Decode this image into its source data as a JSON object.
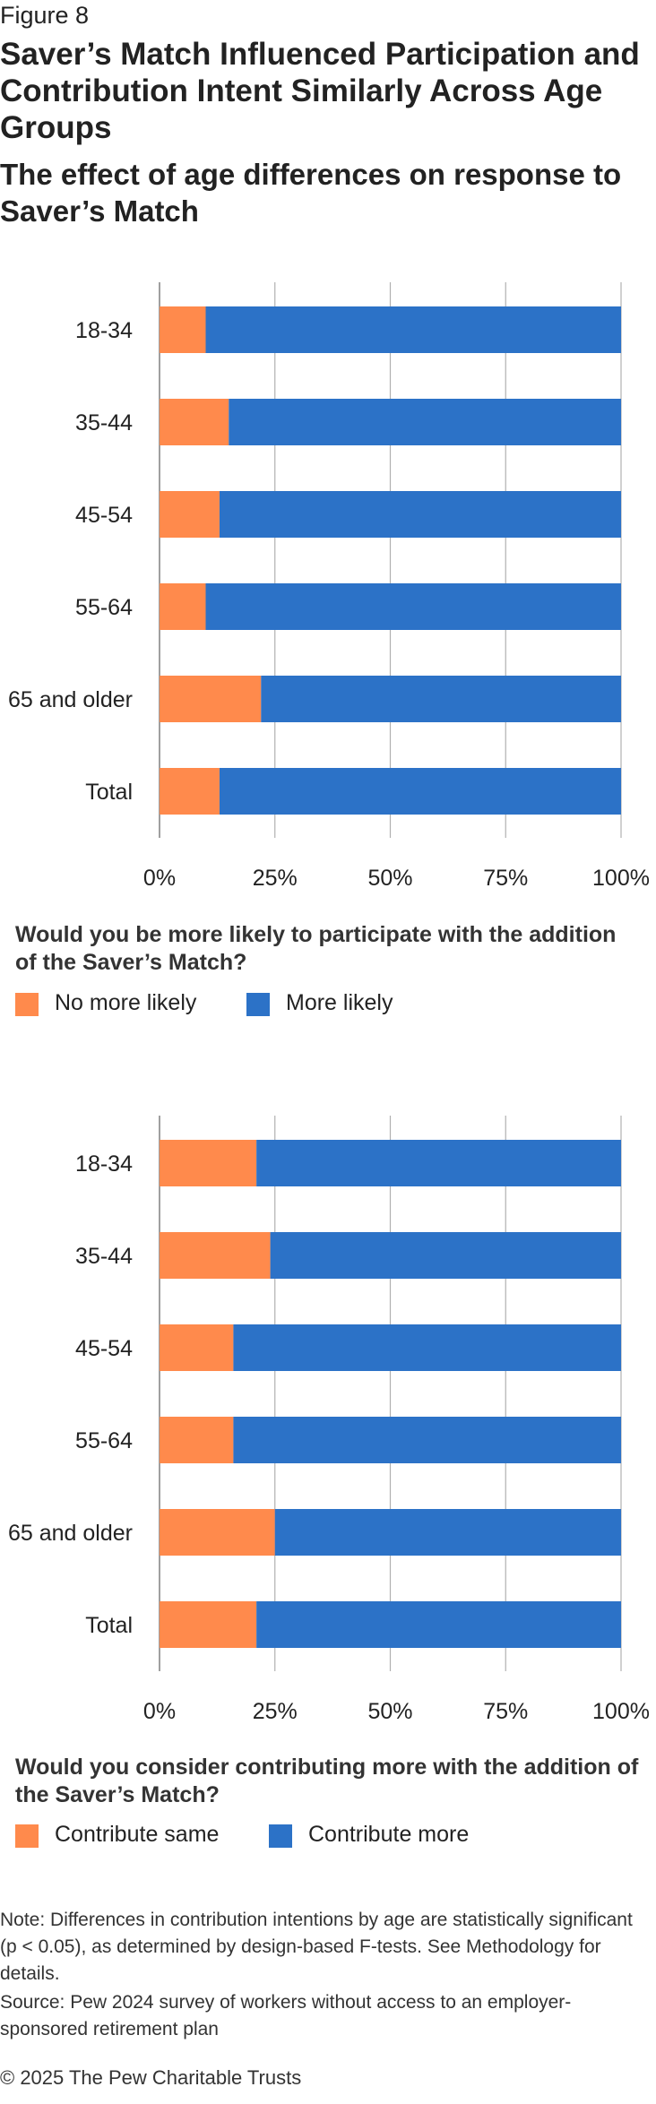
{
  "header": {
    "figure_label": "Figure 8",
    "title": "Saver’s Match Influenced Participation and Contribution Intent Similarly Across Age Groups",
    "subtitle": "The effect of age differences on response to Saver’s Match"
  },
  "colors": {
    "orange": "#ff8a4c",
    "blue": "#2c72c7",
    "gridline": "#b0b0b0",
    "axis": "#888888"
  },
  "chart_data": [
    {
      "type": "bar",
      "orientation": "horizontal",
      "stacked": true,
      "question": "Would you be more likely to participate with the addition of the Saver’s Match?",
      "categories": [
        "18-34",
        "35-44",
        "45-54",
        "55-64",
        "65 and older",
        "Total"
      ],
      "series": [
        {
          "name": "No more likely",
          "color": "#ff8a4c",
          "values": [
            10,
            15,
            13,
            10,
            22,
            13
          ]
        },
        {
          "name": "More likely",
          "color": "#2c72c7",
          "values": [
            90,
            85,
            87,
            90,
            78,
            87
          ]
        }
      ],
      "xlim": [
        0,
        100
      ],
      "x_ticks": [
        0,
        25,
        50,
        75,
        100
      ],
      "x_tick_labels": [
        "0%",
        "25%",
        "50%",
        "75%",
        "100%"
      ],
      "grid": true,
      "legend_position": "bottom-left"
    },
    {
      "type": "bar",
      "orientation": "horizontal",
      "stacked": true,
      "question": "Would you consider contributing more with the addition of the Saver’s Match?",
      "categories": [
        "18-34",
        "35-44",
        "45-54",
        "55-64",
        "65 and older",
        "Total"
      ],
      "series": [
        {
          "name": "Contribute same",
          "color": "#ff8a4c",
          "values": [
            21,
            24,
            16,
            16,
            25,
            21
          ]
        },
        {
          "name": "Contribute more",
          "color": "#2c72c7",
          "values": [
            79,
            76,
            84,
            84,
            75,
            79
          ]
        }
      ],
      "xlim": [
        0,
        100
      ],
      "x_ticks": [
        0,
        25,
        50,
        75,
        100
      ],
      "x_tick_labels": [
        "0%",
        "25%",
        "50%",
        "75%",
        "100%"
      ],
      "grid": true,
      "legend_position": "bottom-left"
    }
  ],
  "footer": {
    "note": "Note: Differences in contribution intentions by age are statistically significant (p < 0.05), as determined by design-based F-tests. See Methodology for details.",
    "source": "Source: Pew 2024 survey of workers without access to an employer-sponsored retirement plan",
    "copyright": "© 2025 The Pew Charitable Trusts"
  }
}
